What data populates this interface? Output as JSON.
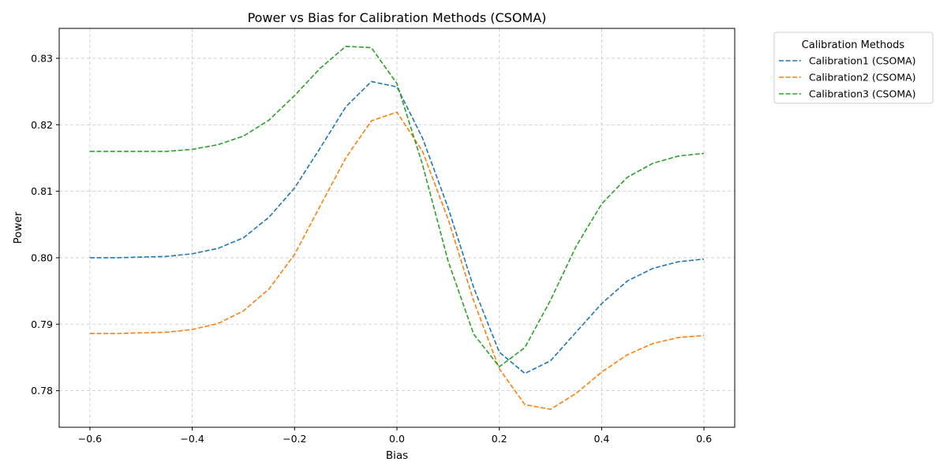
{
  "chart_data": {
    "type": "line",
    "title": "Power vs Bias for Calibration Methods (CSOMA)",
    "xlabel": "Bias",
    "ylabel": "Power",
    "xlim": [
      -0.66,
      0.66
    ],
    "ylim": [
      0.7745,
      0.8345
    ],
    "x_ticks": [
      -0.6,
      -0.4,
      -0.2,
      0.0,
      0.2,
      0.4,
      0.6
    ],
    "x_tick_labels": [
      "−0.6",
      "−0.4",
      "−0.2",
      "0.0",
      "0.2",
      "0.4",
      "0.6"
    ],
    "y_ticks": [
      0.78,
      0.79,
      0.8,
      0.81,
      0.82,
      0.83
    ],
    "y_tick_labels": [
      "0.78",
      "0.79",
      "0.80",
      "0.81",
      "0.82",
      "0.83"
    ],
    "grid": true,
    "line_style": "dashed",
    "legend_title": "Calibration Methods",
    "legend_position": "outside-top-right",
    "x": [
      -0.6,
      -0.55,
      -0.5,
      -0.45,
      -0.4,
      -0.35,
      -0.3,
      -0.25,
      -0.2,
      -0.15,
      -0.1,
      -0.05,
      0.0,
      0.05,
      0.1,
      0.15,
      0.2,
      0.25,
      0.3,
      0.35,
      0.4,
      0.45,
      0.5,
      0.55,
      0.6
    ],
    "series": [
      {
        "name": "Calibration1 (CSOMA)",
        "color": "#1f77b4",
        "values": [
          0.8,
          0.8,
          0.8001,
          0.8002,
          0.8006,
          0.8014,
          0.803,
          0.8061,
          0.8105,
          0.8165,
          0.8227,
          0.8265,
          0.8257,
          0.818,
          0.8075,
          0.7955,
          0.7858,
          0.7826,
          0.7845,
          0.7888,
          0.7931,
          0.7965,
          0.7984,
          0.7994,
          0.7998
        ]
      },
      {
        "name": "Calibration2 (CSOMA)",
        "color": "#ff7f0e",
        "values": [
          0.7886,
          0.7886,
          0.7887,
          0.7888,
          0.7892,
          0.7901,
          0.792,
          0.7953,
          0.8005,
          0.8078,
          0.815,
          0.8206,
          0.8219,
          0.816,
          0.8058,
          0.7935,
          0.7833,
          0.7779,
          0.7772,
          0.7796,
          0.7828,
          0.7854,
          0.7871,
          0.788,
          0.7883
        ]
      },
      {
        "name": "Calibration3 (CSOMA)",
        "color": "#2ca02c",
        "values": [
          0.816,
          0.816,
          0.816,
          0.816,
          0.8163,
          0.817,
          0.8183,
          0.8207,
          0.8244,
          0.8285,
          0.8318,
          0.8316,
          0.8262,
          0.814,
          0.7995,
          0.7885,
          0.7836,
          0.7865,
          0.7936,
          0.8017,
          0.8081,
          0.8121,
          0.8142,
          0.8153,
          0.8157
        ]
      }
    ]
  }
}
